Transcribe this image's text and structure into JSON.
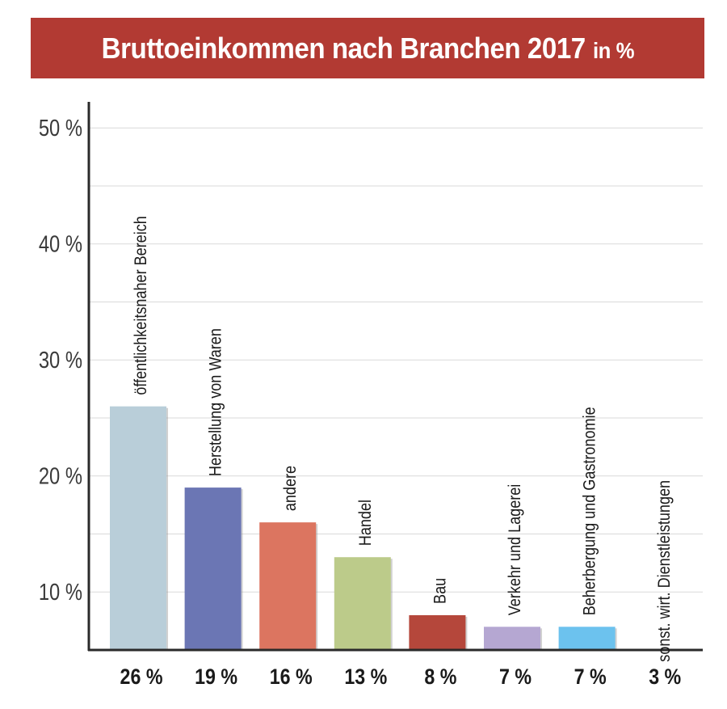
{
  "title": {
    "main": "Bruttoeinkommen nach Branchen 2017",
    "unit": "in %"
  },
  "colors": {
    "title_bg": "#b23a33",
    "axis": "#2a2a2a",
    "grid": "#d9d9d9"
  },
  "chart_data": {
    "type": "bar",
    "title": "Bruttoeinkommen nach Branchen 2017 in %",
    "categories": [
      "öffentlichkeitsnaher Bereich",
      "Herstellung von Waren",
      "andere",
      "Handel",
      "Bau",
      "Verkehr und Lagerei",
      "Beherbergung und Gastronomie",
      "sonst. wirt. Dienstleistungen"
    ],
    "values": [
      26,
      19,
      16,
      13,
      8,
      7,
      7,
      3
    ],
    "value_labels": [
      "26 %",
      "19 %",
      "16 %",
      "13 %",
      "8 %",
      "7 %",
      "7 %",
      "3 %"
    ],
    "bar_colors": [
      "#b9ced9",
      "#6b76b4",
      "#dc7560",
      "#bccb8a",
      "#b5473b",
      "#b5a7d2",
      "#6cc2ee",
      "#f0b577"
    ],
    "ylim": [
      5,
      50
    ],
    "yticks": [
      10,
      20,
      30,
      40,
      50
    ],
    "ytick_labels": [
      "10 %",
      "20 %",
      "30 %",
      "40 %",
      "50 %"
    ],
    "grid": true,
    "legend": "none"
  }
}
